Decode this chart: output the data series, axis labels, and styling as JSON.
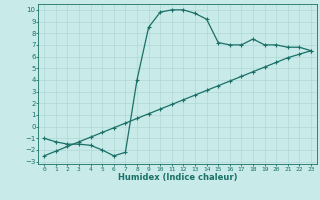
{
  "xlabel": "Humidex (Indice chaleur)",
  "ylabel": "",
  "background_color": "#c8eae8",
  "grid_color": "#b0d8d4",
  "line_color": "#1a7068",
  "xlim": [
    -0.5,
    23.5
  ],
  "ylim": [
    -3.2,
    10.5
  ],
  "xticks": [
    0,
    1,
    2,
    3,
    4,
    5,
    6,
    7,
    8,
    9,
    10,
    11,
    12,
    13,
    14,
    15,
    16,
    17,
    18,
    19,
    20,
    21,
    22,
    23
  ],
  "yticks": [
    -3,
    -2,
    -1,
    0,
    1,
    2,
    3,
    4,
    5,
    6,
    7,
    8,
    9,
    10
  ],
  "curve1_x": [
    0,
    1,
    2,
    3,
    4,
    5,
    6,
    7,
    8,
    9,
    10,
    11,
    12,
    13,
    14,
    15,
    16,
    17,
    18,
    19,
    20,
    21,
    22,
    23
  ],
  "curve1_y": [
    -1.0,
    -1.3,
    -1.5,
    -1.5,
    -1.6,
    -2.0,
    -2.5,
    -2.2,
    4.0,
    8.5,
    9.8,
    10.0,
    10.0,
    9.7,
    9.2,
    7.2,
    7.0,
    7.0,
    7.5,
    7.0,
    7.0,
    6.8,
    6.8,
    6.5
  ],
  "curve2_x": [
    0,
    1,
    2,
    3,
    4,
    5,
    6,
    7,
    8,
    9,
    10,
    11,
    12,
    13,
    14,
    15,
    16,
    17,
    18,
    19,
    20,
    21,
    22,
    23
  ],
  "curve2_y": [
    -2.5,
    -2.1,
    -1.7,
    -1.3,
    -0.9,
    -0.5,
    -0.1,
    0.3,
    0.7,
    1.1,
    1.5,
    1.9,
    2.3,
    2.7,
    3.1,
    3.5,
    3.9,
    4.3,
    4.7,
    5.1,
    5.5,
    5.9,
    6.2,
    6.5
  ]
}
